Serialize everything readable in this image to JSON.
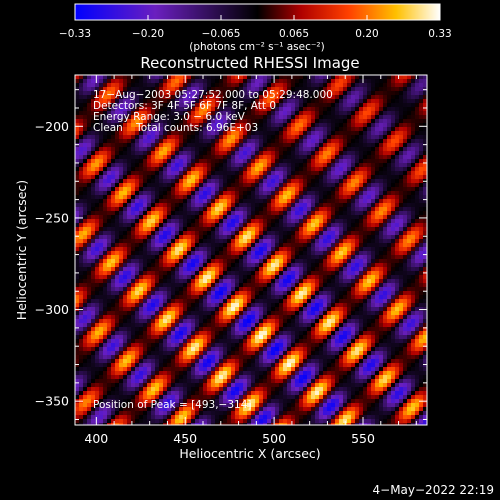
{
  "chart_data": {
    "type": "heatmap",
    "title": "Reconstructed RHESSI Image",
    "xlabel": "Heliocentric X (arcsec)",
    "ylabel": "Heliocentric Y (arcsec)",
    "xlim": [
      388,
      586
    ],
    "ylim": [
      -363,
      -172
    ],
    "x_ticks": [
      400,
      450,
      500,
      550
    ],
    "x_tick_labels": [
      "400",
      "450",
      "500",
      "550"
    ],
    "y_ticks": [
      -200,
      -250,
      -300,
      -350
    ],
    "y_tick_labels": [
      "−200",
      "−250",
      "−300",
      "−350"
    ],
    "colorbar": {
      "range": [
        -0.33,
        0.33
      ],
      "tick_labels": [
        "−0.33",
        "−0.20",
        "−0.065",
        "0.065",
        "0.20",
        "0.33"
      ],
      "unit_label": "(photons cm⁻² s⁻¹ asec⁻²)",
      "colors": [
        "#0000ff",
        "#6a1fbf",
        "#000000",
        "#b00000",
        "#ff4000",
        "#ffc000",
        "#ffffff"
      ]
    },
    "annotations": [
      "17−Aug−2003 05:27:52.000 to 05:29:48.000",
      "Detectors: 3F 4F 5F 6F 7F 8F, Att 0",
      "Energy Range: 3.0 − 6.0 keV",
      "Clean    Total counts: 6.96E+03"
    ],
    "peak_label": "Position of Peak = [493,−314]",
    "peak": [
      493,
      -314
    ],
    "peak_value": 0.33,
    "grid": false
  },
  "footer": {
    "timestamp": "4−May−2022 22:19"
  }
}
